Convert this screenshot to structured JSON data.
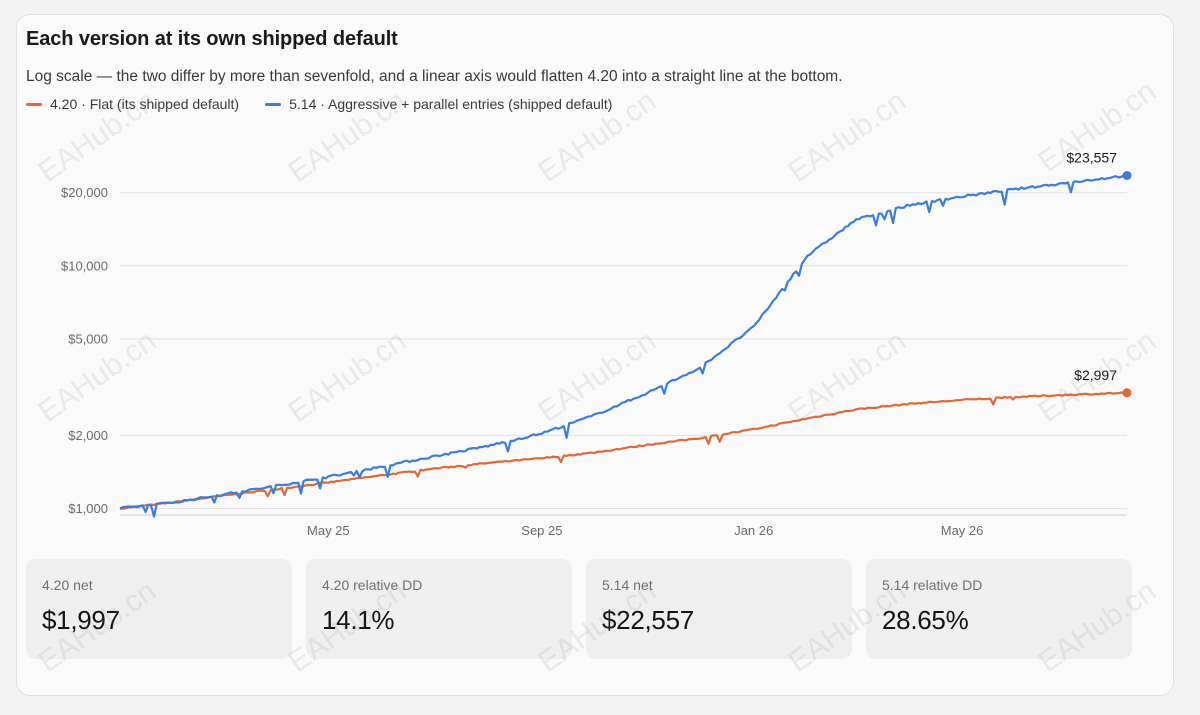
{
  "title": "Each version at its own shipped default",
  "subtitle": "Log scale — the two differ by more than sevenfold, and a linear axis would flatten 4.20 into a straight line at the bottom.",
  "legend": [
    {
      "label": "4.20 · Flat (its shipped default)",
      "color": "#e0693a"
    },
    {
      "label": "5.14 · Aggressive + parallel entries (shipped default)",
      "color": "#3b7dd8"
    }
  ],
  "stats": [
    {
      "label": "4.20 net",
      "value": "$1,997"
    },
    {
      "label": "4.20 relative DD",
      "value": "14.1%"
    },
    {
      "label": "5.14 net",
      "value": "$22,557"
    },
    {
      "label": "5.14 relative DD",
      "value": "28.65%"
    }
  ],
  "watermark": "EAHub.cn",
  "chart_data": {
    "type": "line",
    "title": "Each version at its own shipped default",
    "yscale": "log",
    "ylim": [
      940,
      30000
    ],
    "yticks": [
      1000,
      2000,
      5000,
      10000,
      20000
    ],
    "ytick_labels": [
      "$1,000",
      "$2,000",
      "$5,000",
      "$10,000",
      "$20,000"
    ],
    "xlim": [
      "2025-01-01",
      "2026-08-04"
    ],
    "xticks": [
      "2025-05-01",
      "2025-09-01",
      "2026-01-01",
      "2026-05-01"
    ],
    "xtick_labels": [
      "May 25",
      "Sep 25",
      "Jan 26",
      "May 26"
    ],
    "grid": true,
    "legend_position": "top-left",
    "series": [
      {
        "name": "4.20 · Flat (its shipped default)",
        "color": "#e0693a",
        "end_label": "$2,997",
        "points": [
          [
            "2025-01-01",
            1000
          ],
          [
            "2025-02-01",
            1060
          ],
          [
            "2025-03-01",
            1130
          ],
          [
            "2025-04-01",
            1200
          ],
          [
            "2025-05-01",
            1280
          ],
          [
            "2025-06-01",
            1370
          ],
          [
            "2025-07-01",
            1460
          ],
          [
            "2025-08-01",
            1540
          ],
          [
            "2025-09-01",
            1610
          ],
          [
            "2025-10-01",
            1700
          ],
          [
            "2025-11-01",
            1830
          ],
          [
            "2025-12-01",
            1950
          ],
          [
            "2026-01-01",
            2120
          ],
          [
            "2026-02-01",
            2350
          ],
          [
            "2026-03-01",
            2560
          ],
          [
            "2026-04-01",
            2700
          ],
          [
            "2026-05-01",
            2800
          ],
          [
            "2026-06-01",
            2880
          ],
          [
            "2026-07-01",
            2940
          ],
          [
            "2026-08-04",
            2997
          ]
        ]
      },
      {
        "name": "5.14 · Aggressive + parallel entries (shipped default)",
        "color": "#3b7dd8",
        "end_label": "$23,557",
        "points": [
          [
            "2025-01-01",
            1000
          ],
          [
            "2025-02-01",
            1060
          ],
          [
            "2025-03-01",
            1140
          ],
          [
            "2025-04-01",
            1240
          ],
          [
            "2025-05-01",
            1350
          ],
          [
            "2025-06-01",
            1490
          ],
          [
            "2025-07-01",
            1640
          ],
          [
            "2025-08-01",
            1810
          ],
          [
            "2025-09-01",
            2040
          ],
          [
            "2025-10-01",
            2420
          ],
          [
            "2025-11-01",
            3000
          ],
          [
            "2025-12-01",
            3800
          ],
          [
            "2026-01-01",
            5600
          ],
          [
            "2026-02-01",
            11000
          ],
          [
            "2026-03-01",
            15500
          ],
          [
            "2026-04-01",
            17800
          ],
          [
            "2026-05-01",
            19300
          ],
          [
            "2026-06-01",
            20700
          ],
          [
            "2026-07-01",
            22000
          ],
          [
            "2026-08-04",
            23557
          ]
        ]
      }
    ]
  }
}
